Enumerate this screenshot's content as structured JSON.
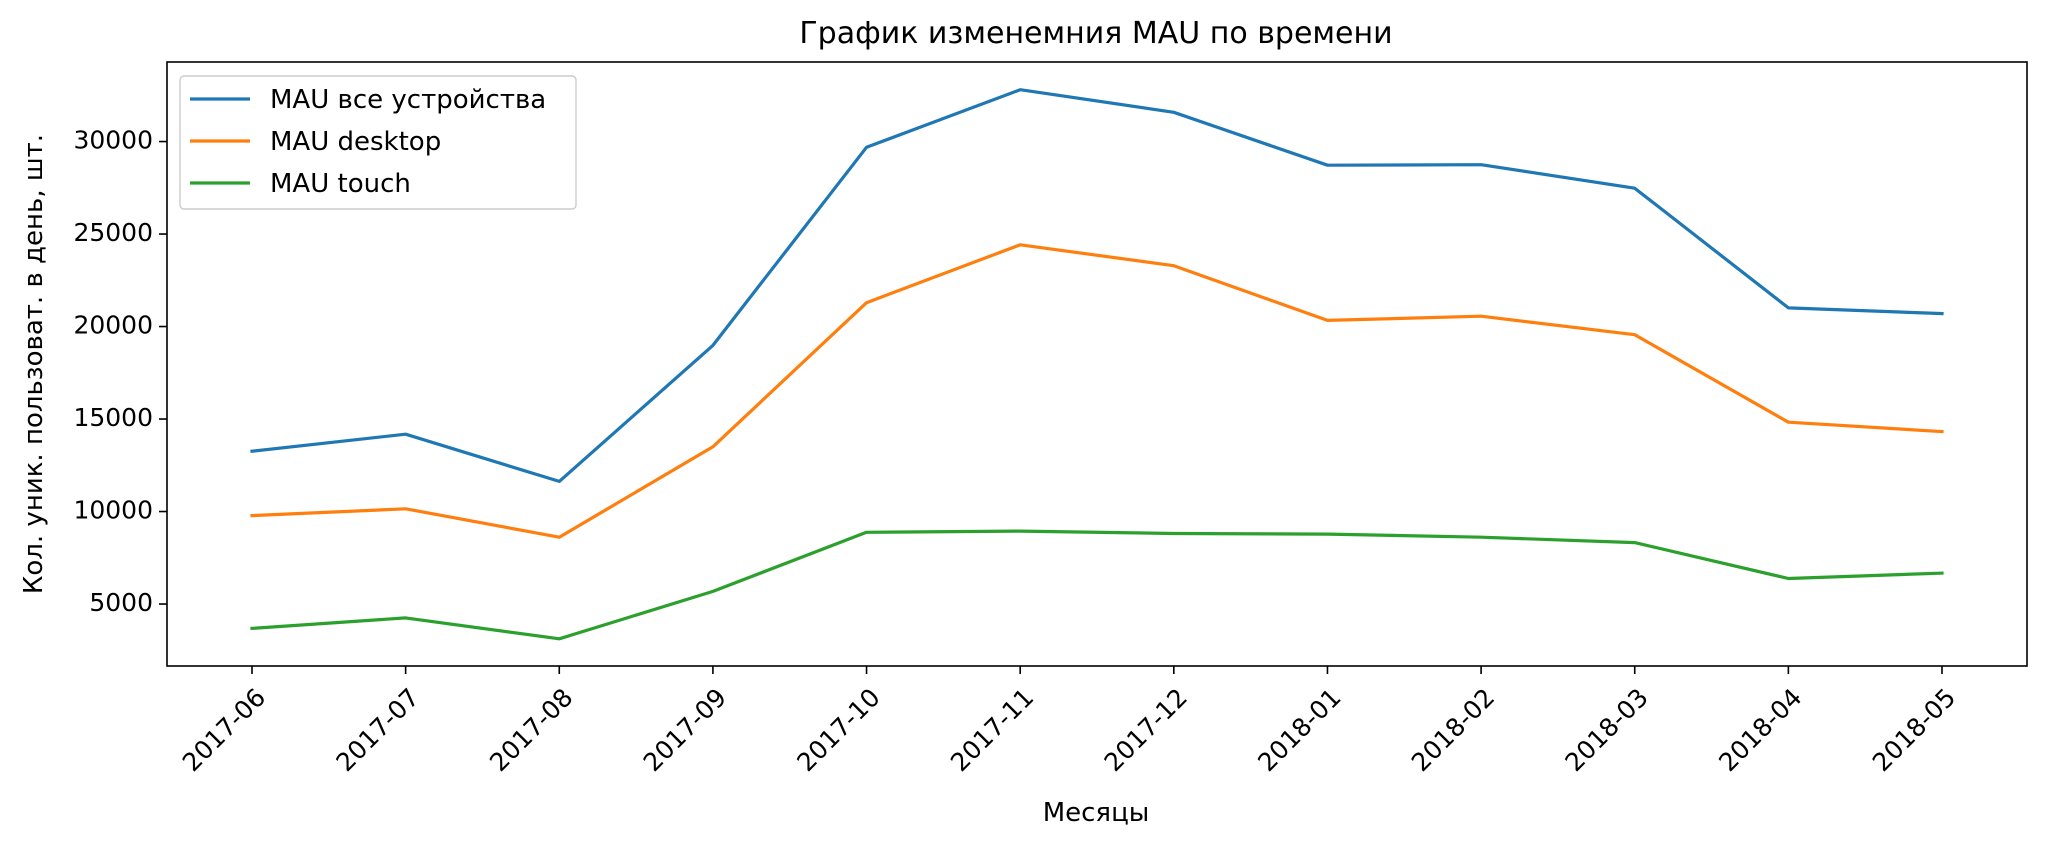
{
  "chart_data": {
    "type": "line",
    "title": "График изменемния MAU по времени",
    "xlabel": "Месяцы",
    "ylabel": "Кол. уник. пользоват. в день, шт.",
    "categories": [
      "2017-06",
      "2017-07",
      "2017-08",
      "2017-09",
      "2017-10",
      "2017-11",
      "2017-12",
      "2018-01",
      "2018-02",
      "2018-03",
      "2018-04",
      "2018-05"
    ],
    "y_ticks": [
      5000,
      10000,
      15000,
      20000,
      25000,
      30000
    ],
    "ylim": [
      1650,
      34300
    ],
    "grid": false,
    "legend_position": "top-left",
    "series": [
      {
        "name": "MAU все устройства",
        "color": "#1f77b4",
        "values": [
          13260,
          14180,
          11630,
          18980,
          29690,
          32800,
          31580,
          28720,
          28750,
          27480,
          21010,
          20700
        ]
      },
      {
        "name": "MAU desktop",
        "color": "#ff7f0e",
        "values": [
          9780,
          10150,
          8610,
          13500,
          21290,
          24420,
          23290,
          20330,
          20560,
          19560,
          14830,
          14320
        ]
      },
      {
        "name": "MAU touch",
        "color": "#2ca02c",
        "values": [
          3680,
          4250,
          3120,
          5680,
          8880,
          8940,
          8810,
          8780,
          8610,
          8320,
          6380,
          6670
        ]
      }
    ]
  }
}
